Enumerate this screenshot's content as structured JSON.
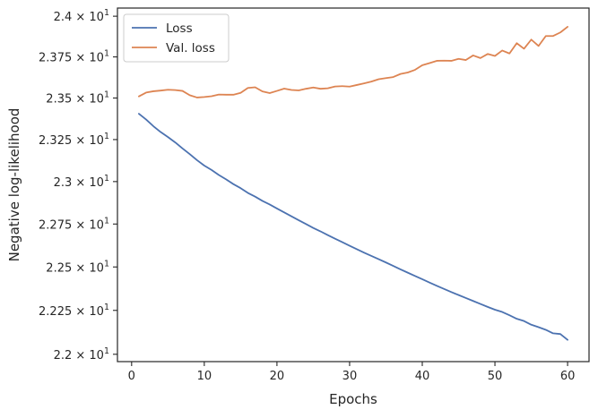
{
  "chart_data": {
    "type": "line",
    "title": "",
    "xlabel": "Epochs",
    "ylabel": "Negative log-likelihood",
    "xlim": [
      -1.95,
      62.95
    ],
    "ylim": [
      21.9585,
      24.0505
    ],
    "x_ticks": [
      0,
      10,
      20,
      30,
      40,
      50,
      60
    ],
    "x_tick_labels": [
      "0",
      "10",
      "20",
      "30",
      "40",
      "50",
      "60"
    ],
    "y_ticks": [
      22.0,
      22.25,
      22.5,
      22.75,
      23.0,
      23.25,
      23.5,
      23.75,
      24.0
    ],
    "y_tick_labels": [
      {
        "mantissa": "2.2",
        "base": "10",
        "exp": "1"
      },
      {
        "mantissa": "2.225",
        "base": "10",
        "exp": "1"
      },
      {
        "mantissa": "2.25",
        "base": "10",
        "exp": "1"
      },
      {
        "mantissa": "2.275",
        "base": "10",
        "exp": "1"
      },
      {
        "mantissa": "2.3",
        "base": "10",
        "exp": "1"
      },
      {
        "mantissa": "2.325",
        "base": "10",
        "exp": "1"
      },
      {
        "mantissa": "2.35",
        "base": "10",
        "exp": "1"
      },
      {
        "mantissa": "2.375",
        "base": "10",
        "exp": "1"
      },
      {
        "mantissa": "2.4",
        "base": "10",
        "exp": "1"
      }
    ],
    "y_scale": "log",
    "grid": false,
    "legend_position": "top-left",
    "x": [
      1,
      2,
      3,
      4,
      5,
      6,
      7,
      8,
      9,
      10,
      11,
      12,
      13,
      14,
      15,
      16,
      17,
      18,
      19,
      20,
      21,
      22,
      23,
      24,
      25,
      26,
      27,
      28,
      29,
      30,
      31,
      32,
      33,
      34,
      35,
      36,
      37,
      38,
      39,
      40,
      41,
      42,
      43,
      44,
      45,
      46,
      47,
      48,
      49,
      50,
      51,
      52,
      53,
      54,
      55,
      56,
      57,
      58,
      59,
      60
    ],
    "series": [
      {
        "name": "Loss",
        "color": "#4c72b0",
        "values": [
          23.405,
          23.37,
          23.33,
          23.295,
          23.265,
          23.233,
          23.197,
          23.163,
          23.127,
          23.095,
          23.069,
          23.039,
          23.013,
          22.985,
          22.961,
          22.933,
          22.911,
          22.886,
          22.865,
          22.841,
          22.818,
          22.795,
          22.772,
          22.75,
          22.727,
          22.707,
          22.685,
          22.664,
          22.644,
          22.623,
          22.603,
          22.583,
          22.564,
          22.545,
          22.526,
          22.506,
          22.486,
          22.467,
          22.448,
          22.429,
          22.41,
          22.391,
          22.373,
          22.355,
          22.338,
          22.321,
          22.304,
          22.287,
          22.27,
          22.254,
          22.241,
          22.222,
          22.202,
          22.189,
          22.168,
          22.154,
          22.139,
          22.119,
          22.115,
          22.082
        ]
      },
      {
        "name": "Val. loss",
        "color": "#dd8452",
        "values": [
          23.51,
          23.533,
          23.541,
          23.545,
          23.55,
          23.548,
          23.543,
          23.517,
          23.503,
          23.506,
          23.511,
          23.521,
          23.52,
          23.52,
          23.531,
          23.561,
          23.565,
          23.54,
          23.53,
          23.543,
          23.557,
          23.549,
          23.546,
          23.556,
          23.564,
          23.556,
          23.559,
          23.57,
          23.572,
          23.569,
          23.579,
          23.589,
          23.6,
          23.614,
          23.621,
          23.627,
          23.646,
          23.655,
          23.671,
          23.699,
          23.712,
          23.726,
          23.727,
          23.726,
          23.738,
          23.731,
          23.759,
          23.743,
          23.768,
          23.756,
          23.789,
          23.771,
          23.834,
          23.8,
          23.856,
          23.817,
          23.878,
          23.878,
          23.9,
          23.935
        ]
      }
    ]
  }
}
